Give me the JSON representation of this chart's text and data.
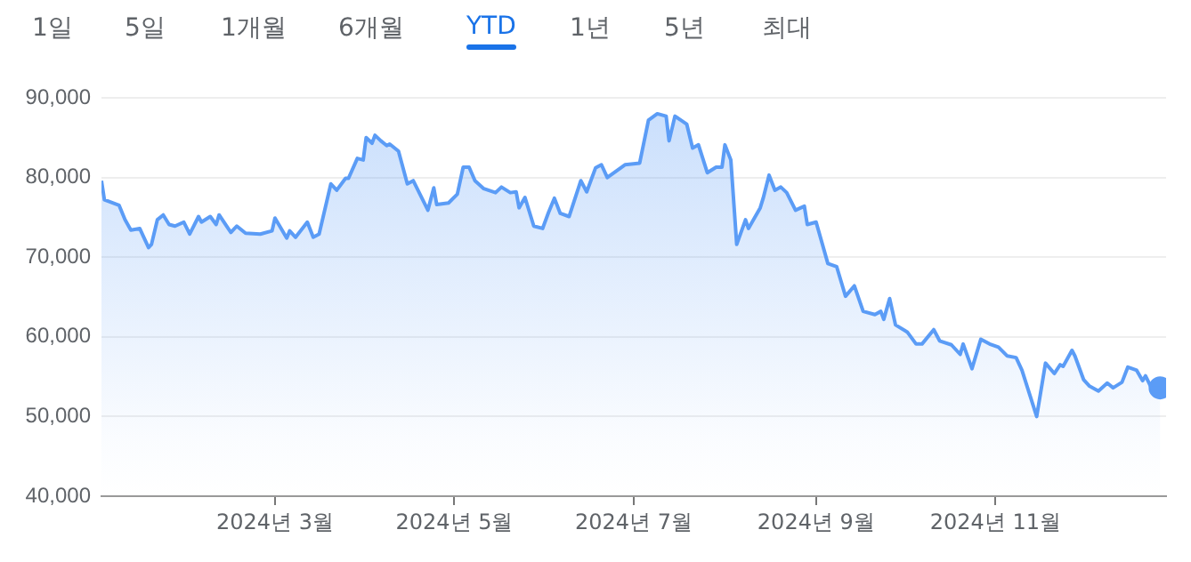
{
  "chart_data": {
    "type": "area",
    "annotations": [
      "1일",
      "5일",
      "1개월",
      "6개월",
      "YTD",
      "1년",
      "5년",
      "최대"
    ],
    "x": [
      "2024-01-02",
      "2024-01-03",
      "2024-01-08",
      "2024-01-10",
      "2024-01-12",
      "2024-01-15",
      "2024-01-18",
      "2024-01-19",
      "2024-01-21",
      "2024-01-23",
      "2024-01-25",
      "2024-01-27",
      "2024-01-30",
      "2024-02-01",
      "2024-02-04",
      "2024-02-05",
      "2024-02-08",
      "2024-02-10",
      "2024-02-11",
      "2024-02-15",
      "2024-02-17",
      "2024-02-20",
      "2024-02-25",
      "2024-02-29",
      "2024-03-01",
      "2024-03-05",
      "2024-03-06",
      "2024-03-08",
      "2024-03-12",
      "2024-03-14",
      "2024-03-16",
      "2024-03-20",
      "2024-03-22",
      "2024-03-25",
      "2024-03-26",
      "2024-03-29",
      "2024-03-31",
      "2024-04-01",
      "2024-04-03",
      "2024-04-04",
      "2024-04-06",
      "2024-04-08",
      "2024-04-09",
      "2024-04-12",
      "2024-04-15",
      "2024-04-17",
      "2024-04-22",
      "2024-04-24",
      "2024-04-25",
      "2024-04-29",
      "2024-05-02",
      "2024-05-04",
      "2024-05-06",
      "2024-05-08",
      "2024-05-11",
      "2024-05-15",
      "2024-05-17",
      "2024-05-20",
      "2024-05-22",
      "2024-05-23",
      "2024-05-25",
      "2024-05-28",
      "2024-05-31",
      "2024-06-02",
      "2024-06-04",
      "2024-06-06",
      "2024-06-09",
      "2024-06-13",
      "2024-06-15",
      "2024-06-18",
      "2024-06-20",
      "2024-06-22",
      "2024-06-28",
      "2024-07-03",
      "2024-07-06",
      "2024-07-09",
      "2024-07-12",
      "2024-07-13",
      "2024-07-15",
      "2024-07-19",
      "2024-07-21",
      "2024-07-23",
      "2024-07-26",
      "2024-07-29",
      "2024-07-31",
      "2024-08-01",
      "2024-08-03",
      "2024-08-05",
      "2024-08-08",
      "2024-08-09",
      "2024-08-13",
      "2024-08-14",
      "2024-08-16",
      "2024-08-18",
      "2024-08-20",
      "2024-08-22",
      "2024-08-25",
      "2024-08-28",
      "2024-08-29",
      "2024-09-01",
      "2024-09-05",
      "2024-09-08",
      "2024-09-11",
      "2024-09-14",
      "2024-09-17",
      "2024-09-21",
      "2024-09-23",
      "2024-09-24",
      "2024-09-26",
      "2024-09-28",
      "2024-10-02",
      "2024-10-05",
      "2024-10-07",
      "2024-10-11",
      "2024-10-13",
      "2024-10-17",
      "2024-10-20",
      "2024-10-21",
      "2024-10-24",
      "2024-10-27",
      "2024-10-30",
      "2024-11-02",
      "2024-11-05",
      "2024-11-08",
      "2024-11-10",
      "2024-11-15",
      "2024-11-18",
      "2024-11-21",
      "2024-11-23",
      "2024-11-24",
      "2024-11-27",
      "2024-11-28",
      "2024-12-01",
      "2024-12-03",
      "2024-12-06",
      "2024-12-09",
      "2024-12-11",
      "2024-12-14",
      "2024-12-16",
      "2024-12-19",
      "2024-12-21",
      "2024-12-22",
      "2024-12-24",
      "2024-12-27"
    ],
    "series": [
      {
        "color": "#5b9cf6",
        "values": [
          79600,
          77200,
          76500,
          74700,
          73400,
          73600,
          71200,
          71600,
          74700,
          75300,
          74100,
          73900,
          74400,
          72900,
          75100,
          74400,
          75100,
          74100,
          75300,
          73100,
          73900,
          73000,
          72900,
          73300,
          74900,
          72400,
          73300,
          72500,
          74400,
          72500,
          72900,
          79200,
          78400,
          79900,
          79900,
          82400,
          82200,
          85000,
          84300,
          85300,
          84600,
          84000,
          84200,
          83300,
          79200,
          79600,
          75900,
          78700,
          76600,
          76800,
          77900,
          81300,
          81300,
          79600,
          78600,
          78100,
          78800,
          78100,
          78200,
          76200,
          77500,
          73900,
          73600,
          75600,
          77400,
          75500,
          75100,
          79600,
          78200,
          81200,
          81600,
          80000,
          81600,
          81800,
          87200,
          88000,
          87700,
          84600,
          87700,
          86700,
          83700,
          84100,
          80600,
          81300,
          81300,
          84100,
          82200,
          71600,
          74700,
          73600,
          76200,
          77400,
          80300,
          78400,
          78800,
          78100,
          75900,
          76400,
          74100,
          74400,
          69200,
          68800,
          65100,
          66400,
          63200,
          62800,
          63200,
          62200,
          64800,
          61500,
          60600,
          59100,
          59100,
          60900,
          59500,
          59000,
          57800,
          59100,
          56000,
          59700,
          59100,
          58700,
          57600,
          57400,
          55800,
          50000,
          56700,
          55400,
          56500,
          56300,
          58300,
          57600,
          54600,
          53800,
          53200,
          54200,
          53600,
          54300,
          56200,
          55800,
          54500,
          55100,
          53600,
          53600
        ]
      },
      {
        "type": "scatter",
        "marker": "circle",
        "color": "#5b9cf6",
        "x": [
          "2024-12-27"
        ],
        "values": [
          53600
        ]
      }
    ],
    "xlim": [
      "2024-01-02",
      "2024-12-29"
    ],
    "xticks": [
      {
        "value": "2024-03-01",
        "label": "2024년 3월"
      },
      {
        "value": "2024-05-01",
        "label": "2024년 5월"
      },
      {
        "value": "2024-07-01",
        "label": "2024년 7월"
      },
      {
        "value": "2024-09-01",
        "label": "2024년 9월"
      },
      {
        "value": "2024-11-01",
        "label": "2024년 11월"
      }
    ],
    "ylim": [
      40000,
      90000
    ],
    "yticks": [
      {
        "value": 40000,
        "label": "40,000"
      },
      {
        "value": 50000,
        "label": "50,000"
      },
      {
        "value": 60000,
        "label": "60,000"
      },
      {
        "value": 70000,
        "label": "70,000"
      },
      {
        "value": 80000,
        "label": "80,000"
      },
      {
        "value": 90000,
        "label": "90,000"
      }
    ],
    "grid": "y",
    "legend": false
  }
}
